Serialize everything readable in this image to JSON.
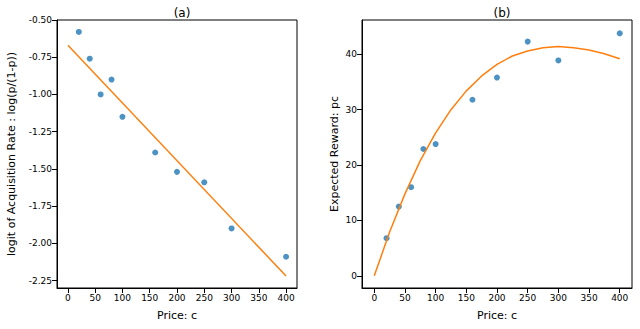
{
  "chart_data": [
    {
      "type": "scatter",
      "title": "(a)",
      "x_label": "Price: c",
      "y_label": "logit of Acquisition Rate : log(p/(1-p))",
      "xlim": [
        -20,
        420
      ],
      "xticks": [
        0,
        50,
        100,
        150,
        200,
        250,
        300,
        350,
        400
      ],
      "ylim": [
        -2.3,
        -0.5
      ],
      "yticks": [
        {
          "value": -2.25,
          "label": "-2.25"
        },
        {
          "value": -2.0,
          "label": "-2.00"
        },
        {
          "value": -1.75,
          "label": "-1.75"
        },
        {
          "value": -1.5,
          "label": "-1.50"
        },
        {
          "value": -1.25,
          "label": "-1.25"
        },
        {
          "value": -1.0,
          "label": "-1.00"
        },
        {
          "value": -0.75,
          "label": "-0.75"
        },
        {
          "value": -0.5,
          "label": "-0.50"
        }
      ],
      "grid": false,
      "series": [
        {
          "type": "scatter",
          "color": "#1f77b4",
          "marker": "circle",
          "x": [
            20,
            40,
            60,
            80,
            100,
            160,
            200,
            250,
            300,
            400
          ],
          "values": [
            -0.58,
            -0.76,
            -1.0,
            -0.9,
            -1.15,
            -1.39,
            -1.52,
            -1.59,
            -1.9,
            -2.09
          ]
        },
        {
          "type": "line",
          "color": "#ff7f0e",
          "line_style": "solid",
          "x": [
            0,
            400
          ],
          "values": [
            -0.67,
            -2.22
          ]
        }
      ]
    },
    {
      "type": "scatter",
      "title": "(b)",
      "x_label": "Price: c",
      "y_label": "Expected Reward: pc",
      "xlim": [
        -20,
        420
      ],
      "xticks": [
        0,
        50,
        100,
        150,
        200,
        250,
        300,
        350,
        400
      ],
      "ylim": [
        -2.2,
        46.2
      ],
      "yticks": [
        0,
        10,
        20,
        30,
        40
      ],
      "grid": false,
      "series": [
        {
          "type": "scatter",
          "color": "#1f77b4",
          "marker": "circle",
          "x": [
            20,
            40,
            60,
            80,
            100,
            160,
            200,
            250,
            300,
            400
          ],
          "values": [
            6.8,
            12.5,
            16.0,
            22.9,
            23.8,
            31.8,
            35.8,
            42.3,
            38.9,
            43.8
          ]
        },
        {
          "type": "line",
          "color": "#ff7f0e",
          "line_style": "solid",
          "x": [
            0,
            25,
            50,
            75,
            100,
            125,
            150,
            175,
            200,
            225,
            250,
            275,
            300,
            325,
            350,
            375,
            400
          ],
          "values": [
            0,
            7.9,
            14.8,
            20.8,
            25.8,
            30.0,
            33.4,
            36.1,
            38.2,
            39.7,
            40.6,
            41.2,
            41.4,
            41.2,
            40.8,
            40.1,
            39.2
          ]
        }
      ]
    }
  ]
}
